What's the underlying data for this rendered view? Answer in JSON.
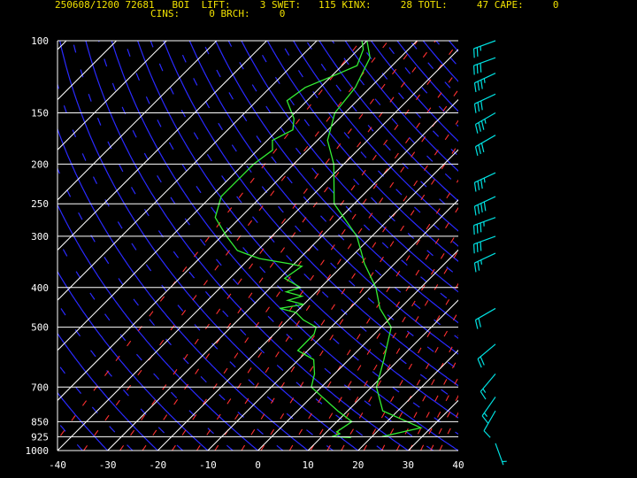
{
  "header": {
    "line1": "250608/1200 72681   BOI  LIFT:     3 SWET:   115 KINX:     28 TOTL:     47 CAPE:     0",
    "line2": "CINS:     0 BRCH:     0"
  },
  "colors": {
    "background": "#000000",
    "isobar": "#ffffff",
    "isotherm": "#ffffff",
    "dry_adiabat": "#2a2aff",
    "mixing_ratio": "#ff3030",
    "dewpoint_profile": "#33ee33",
    "temperature_profile": "#33ee33",
    "wind_barbs": "#00e0e0",
    "header_text": "#f0e000"
  },
  "chart_data": {
    "type": "line",
    "ylim": [
      1000,
      100
    ],
    "xlim": [
      -40,
      40
    ],
    "y_scale": "log",
    "pressure_ticks": [
      {
        "p": 100,
        "label": "100"
      },
      {
        "p": 150,
        "label": "150"
      },
      {
        "p": 200,
        "label": "200"
      },
      {
        "p": 250,
        "label": "250"
      },
      {
        "p": 300,
        "label": "300"
      },
      {
        "p": 400,
        "label": "400"
      },
      {
        "p": 500,
        "label": "500"
      },
      {
        "p": 700,
        "label": "700"
      },
      {
        "p": 850,
        "label": "850"
      },
      {
        "p": 925,
        "label": "925"
      },
      {
        "p": 1000,
        "label": "1000"
      }
    ],
    "temp_ticks": [
      {
        "t": -40,
        "label": "-40"
      },
      {
        "t": -30,
        "label": "-30"
      },
      {
        "t": -20,
        "label": "-20"
      },
      {
        "t": -10,
        "label": "-10"
      },
      {
        "t": 0,
        "label": "0"
      },
      {
        "t": 10,
        "label": "10"
      },
      {
        "t": 20,
        "label": "20"
      },
      {
        "t": 30,
        "label": "30"
      },
      {
        "t": 40,
        "label": "40"
      }
    ],
    "series": [
      {
        "values": [
          [
            925,
            22
          ],
          [
            880,
            28
          ],
          [
            850,
            24
          ],
          [
            800,
            17
          ],
          [
            700,
            11
          ],
          [
            600,
            7
          ],
          [
            500,
            2
          ],
          [
            450,
            -4
          ],
          [
            400,
            -9
          ],
          [
            350,
            -16
          ],
          [
            300,
            -23
          ],
          [
            250,
            -34
          ],
          [
            200,
            -42
          ],
          [
            175,
            -48
          ],
          [
            150,
            -52
          ],
          [
            130,
            -53
          ],
          [
            110,
            -56
          ],
          [
            100,
            -60
          ]
        ]
      },
      {
        "values": [
          [
            930,
            16
          ],
          [
            925,
            12
          ],
          [
            910,
            13
          ],
          [
            900,
            12
          ],
          [
            850,
            13
          ],
          [
            800,
            8
          ],
          [
            700,
            -2
          ],
          [
            650,
            -4
          ],
          [
            600,
            -7
          ],
          [
            570,
            -12
          ],
          [
            520,
            -12
          ],
          [
            500,
            -13
          ],
          [
            480,
            -17
          ],
          [
            460,
            -20
          ],
          [
            450,
            -24
          ],
          [
            440,
            -20
          ],
          [
            430,
            -24
          ],
          [
            420,
            -22
          ],
          [
            410,
            -26
          ],
          [
            400,
            -24
          ],
          [
            380,
            -29
          ],
          [
            355,
            -28
          ],
          [
            350,
            -31
          ],
          [
            340,
            -38
          ],
          [
            330,
            -42
          ],
          [
            325,
            -44
          ],
          [
            300,
            -49
          ],
          [
            270,
            -55
          ],
          [
            240,
            -58
          ],
          [
            210,
            -58
          ],
          [
            200,
            -58
          ],
          [
            185,
            -57
          ],
          [
            175,
            -59
          ],
          [
            165,
            -57
          ],
          [
            155,
            -59
          ],
          [
            140,
            -64
          ],
          [
            130,
            -63
          ],
          [
            120,
            -59
          ],
          [
            115,
            -57
          ],
          [
            105,
            -59
          ],
          [
            100,
            -61
          ]
        ]
      }
    ],
    "wind_barbs": [
      {
        "p": 100,
        "dir": 250,
        "spd": 25
      },
      {
        "p": 110,
        "dir": 250,
        "spd": 30
      },
      {
        "p": 120,
        "dir": 245,
        "spd": 35
      },
      {
        "p": 135,
        "dir": 245,
        "spd": 30
      },
      {
        "p": 150,
        "dir": 240,
        "spd": 35
      },
      {
        "p": 170,
        "dir": 240,
        "spd": 30
      },
      {
        "p": 210,
        "dir": 245,
        "spd": 35
      },
      {
        "p": 240,
        "dir": 245,
        "spd": 40
      },
      {
        "p": 270,
        "dir": 250,
        "spd": 35
      },
      {
        "p": 300,
        "dir": 250,
        "spd": 30
      },
      {
        "p": 330,
        "dir": 245,
        "spd": 25
      },
      {
        "p": 450,
        "dir": 240,
        "spd": 20
      },
      {
        "p": 550,
        "dir": 230,
        "spd": 20
      },
      {
        "p": 650,
        "dir": 220,
        "spd": 15
      },
      {
        "p": 740,
        "dir": 215,
        "spd": 15
      },
      {
        "p": 800,
        "dir": 210,
        "spd": 10
      },
      {
        "p": 960,
        "dir": 160,
        "spd": 5
      }
    ]
  }
}
